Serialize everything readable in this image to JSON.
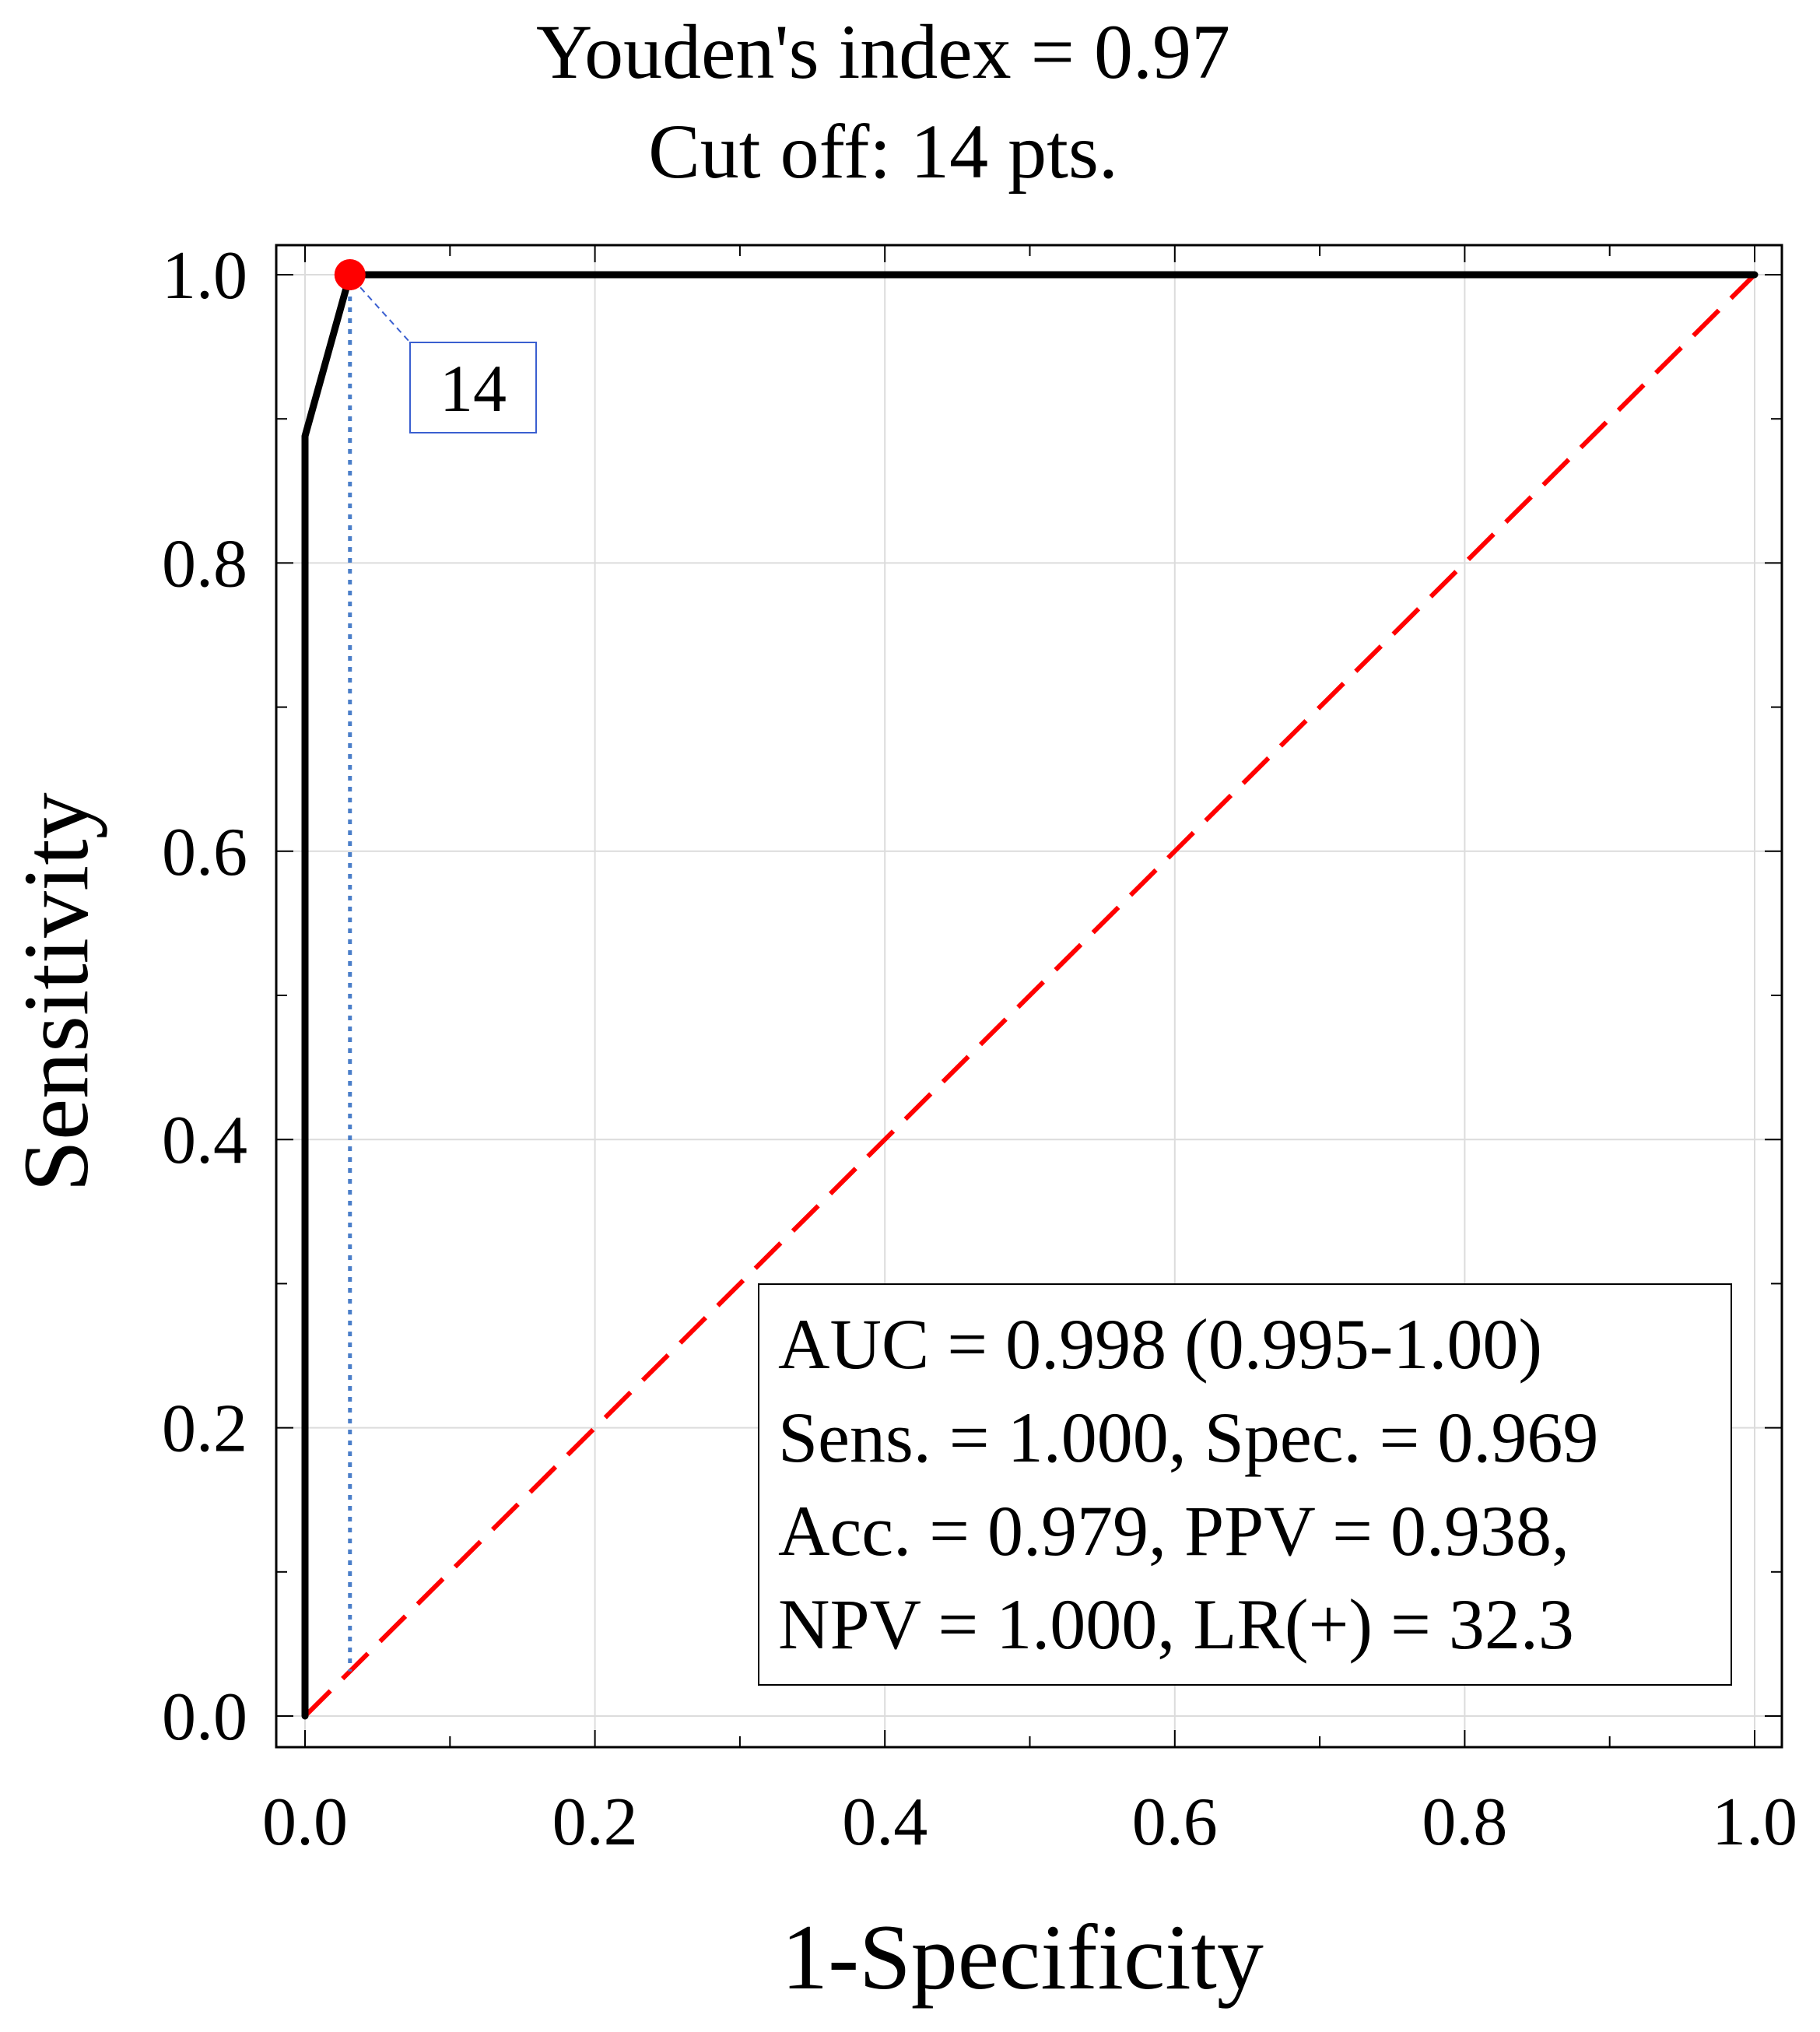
{
  "chart_data": {
    "type": "line",
    "title_lines": [
      "Youden's index  = 0.97",
      "Cut off: 14 pts."
    ],
    "xlabel": "1-Specificity",
    "ylabel": "Sensitivity",
    "xlim": [
      0.0,
      1.0
    ],
    "ylim": [
      0.0,
      1.0
    ],
    "xticks": [
      "0.0",
      "0.2",
      "0.4",
      "0.6",
      "0.8",
      "1.0"
    ],
    "yticks": [
      "0.0",
      "0.2",
      "0.4",
      "0.6",
      "0.8",
      "1.0"
    ],
    "grid": true,
    "series": [
      {
        "name": "ROC curve",
        "color": "#000000",
        "style": "solid",
        "x": [
          0.0,
          0.0,
          0.031,
          1.0
        ],
        "y": [
          0.0,
          0.888,
          1.0,
          1.0
        ]
      },
      {
        "name": "Reference line",
        "color": "#ff0000",
        "style": "dashed",
        "x": [
          0.0,
          1.0
        ],
        "y": [
          0.0,
          1.0
        ]
      }
    ],
    "cutoff_point": {
      "x": 0.031,
      "y": 1.0,
      "label": "14",
      "color": "#ff0000",
      "guide_color": "#4a7ec9"
    },
    "stats_box": {
      "lines": [
        "AUC = 0.998 (0.995-1.00)",
        "Sens. = 1.000, Spec. = 0.969",
        "Acc. = 0.979, PPV = 0.938,",
        "NPV = 1.000, LR(+) = 32.3"
      ],
      "position": "bottom-right"
    }
  }
}
